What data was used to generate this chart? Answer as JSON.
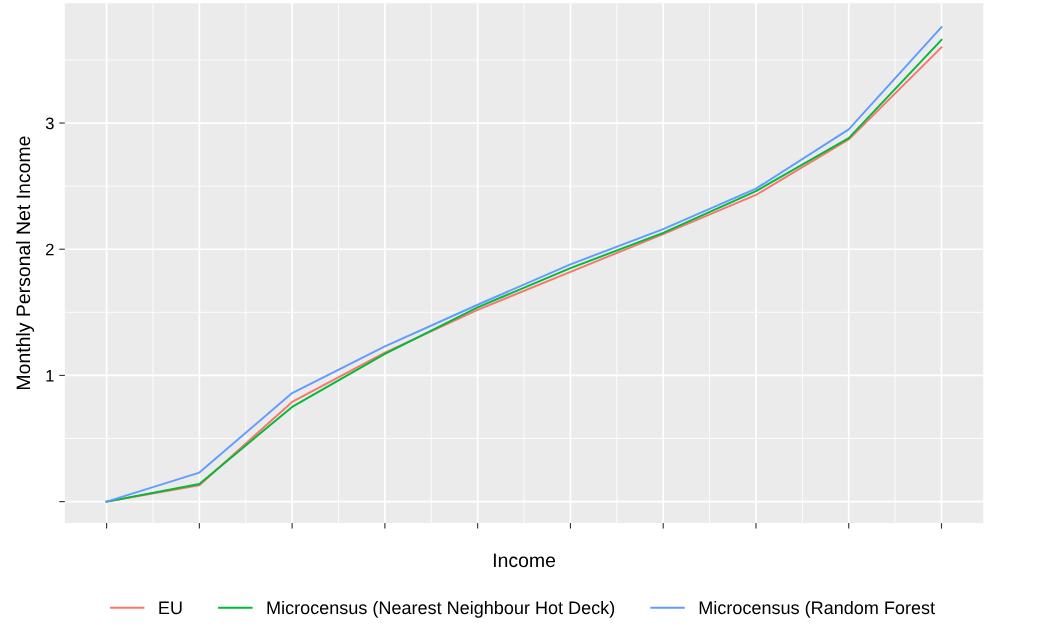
{
  "chart_data": {
    "type": "line",
    "xlabel": "Income",
    "ylabel": "Monthly Personal Net Income",
    "categories": [
      null,
      null,
      null,
      null,
      null,
      null,
      null,
      null,
      null,
      null
    ],
    "series": [
      {
        "name": "EU",
        "color": "#f8766d",
        "values": [
          0,
          0.13,
          0.79,
          1.18,
          1.52,
          1.82,
          2.12,
          2.43,
          2.87,
          3.6
        ]
      },
      {
        "name": "Microcensus (Nearest Neighbour Hot Deck)",
        "color": "#00ba38",
        "values": [
          0,
          0.14,
          0.75,
          1.17,
          1.54,
          1.85,
          2.13,
          2.46,
          2.88,
          3.66
        ]
      },
      {
        "name": "Microcensus (Random Forest",
        "color": "#619cff",
        "values": [
          0,
          0.23,
          0.86,
          1.23,
          1.56,
          1.88,
          2.16,
          2.48,
          2.95,
          3.76
        ]
      }
    ],
    "ylim": [
      -0.17,
      3.95
    ],
    "yticks": [
      {
        "value": 0,
        "label": null
      },
      1,
      2,
      3
    ],
    "grid": true,
    "legend": "bottom",
    "marker": "none",
    "line_style": "solid"
  }
}
